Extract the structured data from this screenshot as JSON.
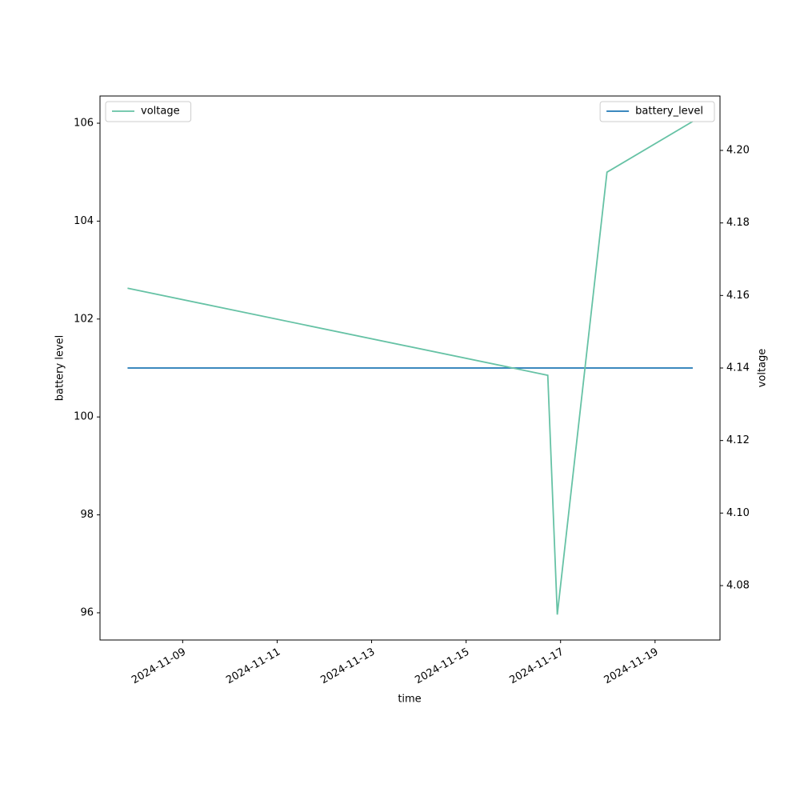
{
  "chart_data": {
    "type": "line",
    "x_label": "time",
    "y_label": "battery level",
    "y2_label": "voltage",
    "x": [
      "2024-11-07T20:00",
      "2024-11-16T17:30",
      "2024-11-16T22:20",
      "2024-11-17T23:35",
      "2024-11-19T19:10"
    ],
    "xlim": [
      "2024-11-07T06:00",
      "2024-11-20T09:00"
    ],
    "xticks": [
      "2024-11-09",
      "2024-11-11",
      "2024-11-13",
      "2024-11-15",
      "2024-11-17",
      "2024-11-19"
    ],
    "ylim": [
      95.444,
      106.556
    ],
    "yticks": [
      96,
      98,
      100,
      102,
      104,
      106
    ],
    "y2lim": [
      4.065,
      4.215
    ],
    "y2ticks": [
      4.08,
      {
        "value": 4.1,
        "label": "4.10"
      },
      4.12,
      4.14,
      4.16,
      4.18,
      {
        "value": 4.2,
        "label": "4.20"
      }
    ],
    "series": [
      {
        "name": "battery_level",
        "color": "#1f77b4",
        "axis": "y",
        "legend": "upper right",
        "values": [
          101,
          101,
          101,
          101,
          101
        ]
      },
      {
        "name": "voltage",
        "color": "#66c2a5",
        "axis": "y2",
        "legend": "upper left",
        "values": [
          4.162,
          4.138,
          4.072,
          4.194,
          4.208
        ]
      }
    ]
  }
}
